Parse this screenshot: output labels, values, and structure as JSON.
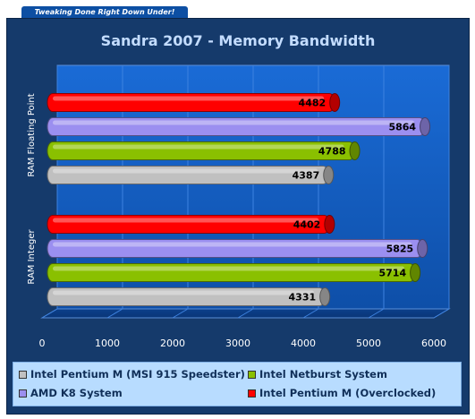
{
  "banner": "Tweaking Done Right Down Under!",
  "chart_data": {
    "type": "bar",
    "orientation": "horizontal",
    "title": "Sandra 2007 - Memory Bandwidth",
    "categories": [
      "RAM Floating Point",
      "RAM Integer"
    ],
    "series": [
      {
        "name": "Intel Pentium M (Overclocked)",
        "color": "#ff0000",
        "values": [
          4482,
          4402
        ]
      },
      {
        "name": "AMD K8 System",
        "color": "#9b8ff0",
        "values": [
          5864,
          5825
        ]
      },
      {
        "name": "Intel Netburst System",
        "color": "#8ac000",
        "values": [
          4788,
          5714
        ]
      },
      {
        "name": "Intel Pentium M (MSI 915 Speedster)",
        "color": "#c0c0c0",
        "values": [
          4387,
          4331
        ]
      }
    ],
    "xlim": [
      0,
      6000
    ],
    "x_ticks": [
      "0",
      "1000",
      "2000",
      "3000",
      "4000",
      "5000",
      "6000"
    ],
    "grid": true,
    "legend_position": "bottom"
  },
  "legend": [
    {
      "label": "Intel Pentium M (MSI 915 Speedster)",
      "color": "#c0c0c0"
    },
    {
      "label": "Intel Netburst System",
      "color": "#8ac000"
    },
    {
      "label": "AMD K8 System",
      "color": "#9b8ff0"
    },
    {
      "label": "Intel Pentium M (Overclocked)",
      "color": "#ff0000"
    }
  ]
}
